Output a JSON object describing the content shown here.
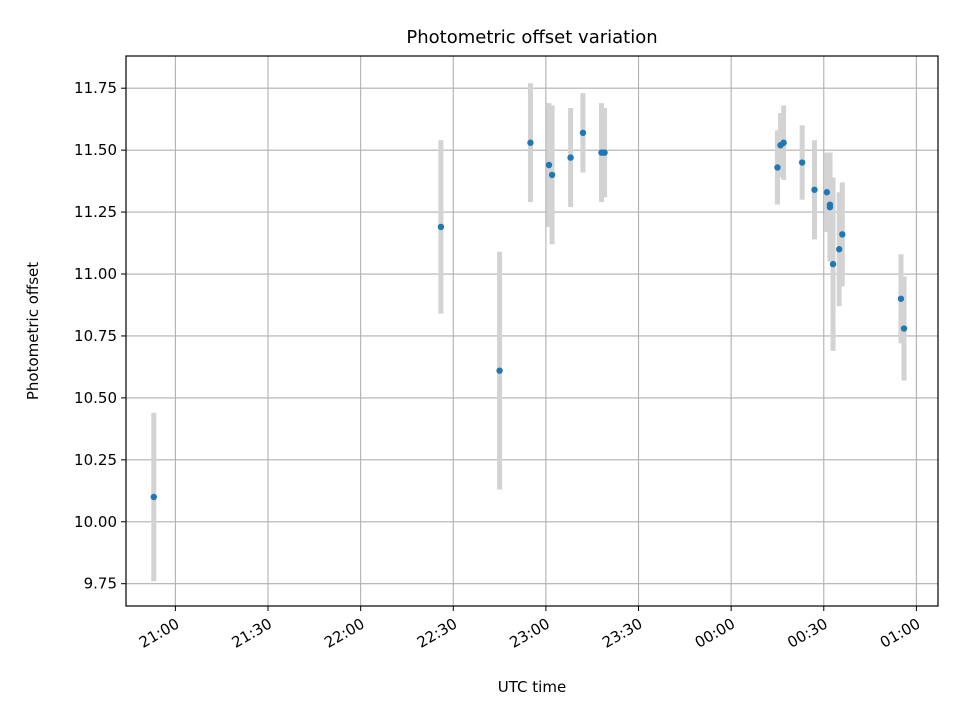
{
  "chart_data": {
    "type": "scatter",
    "title": "Photometric offset variation",
    "xlabel": "UTC time",
    "ylabel": "Photometric offset",
    "grid": true,
    "colors": {
      "point": "#1f77b4",
      "errorbar": "#d3d3d3",
      "grid": "#b0b0b0"
    },
    "xlim": [
      "20:44",
      "01:07"
    ],
    "ylim": [
      9.66,
      11.88
    ],
    "xticks": [
      "21:00",
      "21:30",
      "22:00",
      "22:30",
      "23:00",
      "23:30",
      "00:00",
      "00:30",
      "01:00"
    ],
    "yticks": [
      "9.75",
      "10.00",
      "10.25",
      "10.50",
      "10.75",
      "11.00",
      "11.25",
      "11.50",
      "11.75"
    ],
    "series": [
      {
        "points": [
          {
            "x": "20:53",
            "y": 10.1,
            "yerr": 0.34
          },
          {
            "x": "22:26",
            "y": 11.19,
            "yerr": 0.35
          },
          {
            "x": "22:45",
            "y": 10.61,
            "yerr": 0.48
          },
          {
            "x": "22:55",
            "y": 11.53,
            "yerr": 0.24
          },
          {
            "x": "23:01",
            "y": 11.44,
            "yerr": 0.25
          },
          {
            "x": "23:02",
            "y": 11.4,
            "yerr": 0.28
          },
          {
            "x": "23:08",
            "y": 11.47,
            "yerr": 0.2
          },
          {
            "x": "23:12",
            "y": 11.57,
            "yerr": 0.16
          },
          {
            "x": "23:18",
            "y": 11.49,
            "yerr": 0.2
          },
          {
            "x": "23:19",
            "y": 11.49,
            "yerr": 0.18
          },
          {
            "x": "00:15",
            "y": 11.43,
            "yerr": 0.15
          },
          {
            "x": "00:16",
            "y": 11.52,
            "yerr": 0.13
          },
          {
            "x": "00:17",
            "y": 11.53,
            "yerr": 0.15
          },
          {
            "x": "00:23",
            "y": 11.45,
            "yerr": 0.15
          },
          {
            "x": "00:27",
            "y": 11.34,
            "yerr": 0.2
          },
          {
            "x": "00:31",
            "y": 11.33,
            "yerr": 0.16
          },
          {
            "x": "00:32",
            "y": 11.28,
            "yerr": 0.21
          },
          {
            "x": "00:32",
            "y": 11.27,
            "yerr": 0.22
          },
          {
            "x": "00:33",
            "y": 11.04,
            "yerr": 0.35
          },
          {
            "x": "00:35",
            "y": 11.1,
            "yerr": 0.23
          },
          {
            "x": "00:36",
            "y": 11.16,
            "yerr": 0.21
          },
          {
            "x": "00:55",
            "y": 10.9,
            "yerr": 0.18
          },
          {
            "x": "00:56",
            "y": 10.78,
            "yerr": 0.21
          }
        ]
      }
    ]
  }
}
